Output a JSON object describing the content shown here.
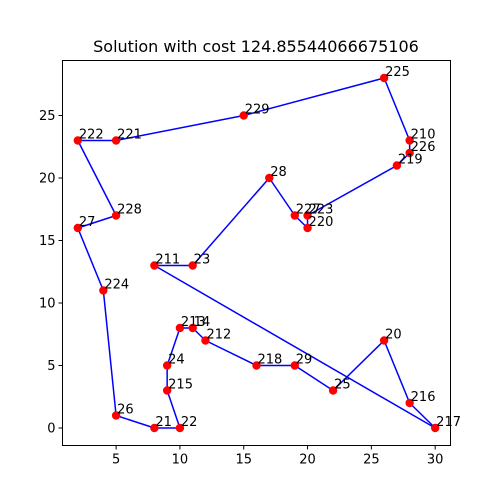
{
  "chart_data": {
    "type": "line",
    "title": "Solution with cost 124.85544066675106",
    "xlabel": "",
    "ylabel": "",
    "xlim": [
      0.8,
      31.2
    ],
    "ylim": [
      -1.4,
      29.4
    ],
    "x_ticks": [
      5,
      10,
      15,
      20,
      25,
      30
    ],
    "y_ticks": [
      0,
      5,
      10,
      15,
      20,
      25
    ],
    "grid": false,
    "line_color": "#0000ff",
    "marker_color": "#ff0000",
    "points": [
      {
        "label": "225",
        "x": 26,
        "y": 28
      },
      {
        "label": "210",
        "x": 28,
        "y": 23
      },
      {
        "label": "226",
        "x": 28,
        "y": 22
      },
      {
        "label": "219",
        "x": 27,
        "y": 21
      },
      {
        "label": "223",
        "x": 20,
        "y": 17
      },
      {
        "label": "220",
        "x": 20,
        "y": 16
      },
      {
        "label": "227",
        "x": 19,
        "y": 17
      },
      {
        "label": "28",
        "x": 17,
        "y": 20
      },
      {
        "label": "23",
        "x": 11,
        "y": 13
      },
      {
        "label": "211",
        "x": 8,
        "y": 13
      },
      {
        "label": "217",
        "x": 30,
        "y": 0
      },
      {
        "label": "216",
        "x": 28,
        "y": 2
      },
      {
        "label": "20",
        "x": 26,
        "y": 7
      },
      {
        "label": "25",
        "x": 22,
        "y": 3
      },
      {
        "label": "29",
        "x": 19,
        "y": 5
      },
      {
        "label": "218",
        "x": 16,
        "y": 5
      },
      {
        "label": "212",
        "x": 12,
        "y": 7
      },
      {
        "label": "14",
        "x": 11,
        "y": 8
      },
      {
        "label": "213",
        "x": 10,
        "y": 8
      },
      {
        "label": "24",
        "x": 9,
        "y": 5
      },
      {
        "label": "215",
        "x": 9,
        "y": 3
      },
      {
        "label": "22",
        "x": 10,
        "y": 0
      },
      {
        "label": "21",
        "x": 8,
        "y": 0
      },
      {
        "label": "26",
        "x": 5,
        "y": 1
      },
      {
        "label": "224",
        "x": 4,
        "y": 11
      },
      {
        "label": "27",
        "x": 2,
        "y": 16
      },
      {
        "label": "228",
        "x": 5,
        "y": 17
      },
      {
        "label": "222",
        "x": 2,
        "y": 23
      },
      {
        "label": "221",
        "x": 5,
        "y": 23
      },
      {
        "label": "229",
        "x": 15,
        "y": 25
      }
    ],
    "route_closed": true
  }
}
